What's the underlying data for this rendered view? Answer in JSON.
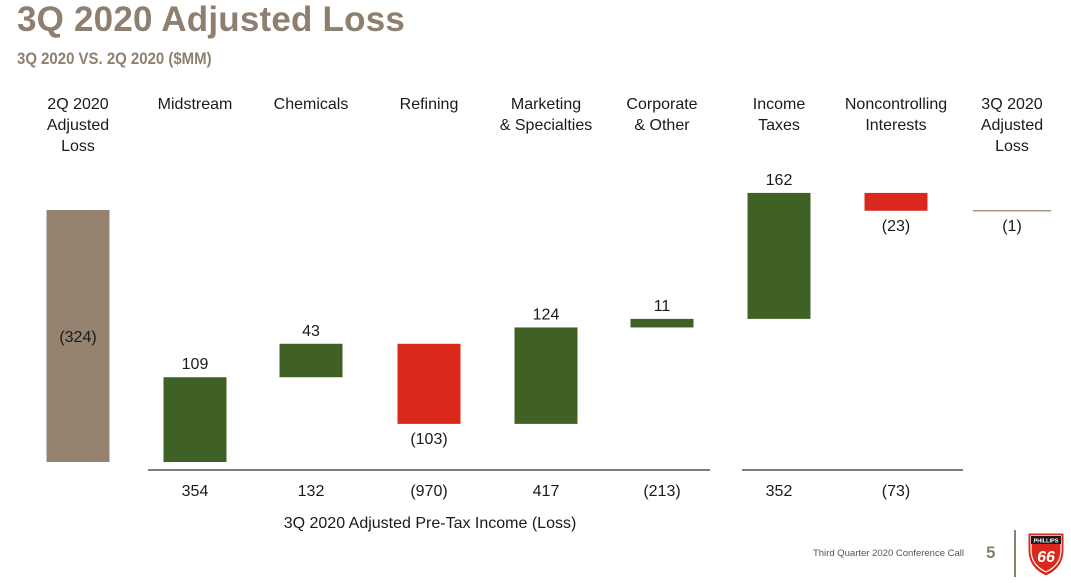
{
  "header": {
    "title": "3Q 2020 Adjusted Loss",
    "subtitle": "3Q 2020 VS. 2Q 2020 ($MM)"
  },
  "footer": {
    "text": "Third Quarter 2020 Conference Call",
    "page_number": "5",
    "logo_top": "PHILLIPS",
    "logo_main": "66"
  },
  "colors": {
    "total": "#958370",
    "increase": "#406126",
    "decrease": "#da281c",
    "axis_line": "#333333"
  },
  "chart_data": {
    "type": "waterfall",
    "title": "3Q 2020 Adjusted Loss",
    "subtitle": "3Q 2020 VS. 2Q 2020 ($MM)",
    "xlabel": "3Q 2020 Adjusted Pre-Tax Income (Loss)",
    "categories": [
      [
        "2Q 2020",
        "Adjusted",
        "Loss"
      ],
      [
        "Midstream"
      ],
      [
        "Chemicals"
      ],
      [
        "Refining"
      ],
      [
        "Marketing",
        "& Specialties"
      ],
      [
        "Corporate",
        "& Other"
      ],
      [
        "Income",
        "Taxes"
      ],
      [
        "Noncontrolling",
        "Interests"
      ],
      [
        "3Q 2020",
        "Adjusted",
        "Loss"
      ]
    ],
    "values": [
      -324,
      109,
      43,
      -103,
      124,
      11,
      162,
      -23,
      -1
    ],
    "value_labels": [
      "(324)",
      "109",
      "43",
      "(103)",
      "124",
      "11",
      "162",
      "(23)",
      "(1)"
    ],
    "kinds": [
      "total",
      "delta",
      "delta",
      "delta",
      "delta",
      "delta",
      "delta",
      "delta",
      "total"
    ],
    "bottom_labels": [
      "",
      "354",
      "132",
      "(970)",
      "417",
      "(213)",
      "352",
      "(73)",
      ""
    ],
    "ylim": [
      -324,
      0
    ]
  }
}
